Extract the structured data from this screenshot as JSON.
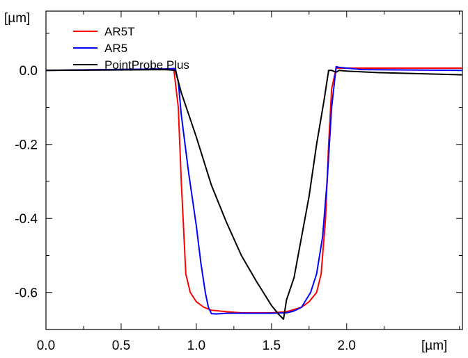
{
  "chart_data": {
    "type": "line",
    "title": "",
    "xlabel": "[µm]",
    "ylabel": "[µm]",
    "xlim": [
      0.0,
      2.77
    ],
    "ylim": [
      -0.7,
      0.16
    ],
    "x_ticks": [
      0.0,
      0.5,
      1.0,
      1.5,
      2.0
    ],
    "x_tick_labels": [
      "0.0",
      "0.5",
      "1.0",
      "1.5",
      "2.0"
    ],
    "y_ticks": [
      0.0,
      -0.2,
      -0.4,
      -0.6
    ],
    "y_tick_labels": [
      "0.0",
      "-0.2",
      "-0.4",
      "-0.6"
    ],
    "grid": false,
    "legend_position": "top-left",
    "series": [
      {
        "name": "AR5T",
        "color": "#ff0000",
        "x": [
          0.0,
          0.4,
          0.8,
          0.85,
          0.88,
          0.9,
          0.93,
          0.96,
          1.0,
          1.05,
          1.1,
          1.2,
          1.3,
          1.4,
          1.5,
          1.6,
          1.7,
          1.75,
          1.8,
          1.83,
          1.86,
          1.88,
          1.9,
          1.93,
          2.0,
          2.3,
          2.77
        ],
        "y": [
          0.0,
          0.002,
          0.004,
          0.004,
          -0.1,
          -0.3,
          -0.55,
          -0.6,
          -0.625,
          -0.64,
          -0.648,
          -0.652,
          -0.655,
          -0.655,
          -0.655,
          -0.652,
          -0.64,
          -0.625,
          -0.6,
          -0.55,
          -0.4,
          -0.2,
          -0.05,
          0.006,
          0.006,
          0.006,
          0.006
        ]
      },
      {
        "name": "AR5",
        "color": "#0000ff",
        "x": [
          0.0,
          0.4,
          0.8,
          0.86,
          0.88,
          0.9,
          0.95,
          1.0,
          1.03,
          1.06,
          1.08,
          1.1,
          1.13,
          1.17,
          1.2,
          1.3,
          1.4,
          1.5,
          1.6,
          1.65,
          1.7,
          1.73,
          1.76,
          1.8,
          1.84,
          1.87,
          1.9,
          1.93,
          1.95,
          2.1,
          2.77
        ],
        "y": [
          0.0,
          0.002,
          0.004,
          0.005,
          -0.03,
          -0.12,
          -0.28,
          -0.42,
          -0.52,
          -0.6,
          -0.64,
          -0.657,
          -0.658,
          -0.657,
          -0.656,
          -0.656,
          -0.656,
          -0.656,
          -0.655,
          -0.65,
          -0.64,
          -0.62,
          -0.6,
          -0.55,
          -0.45,
          -0.3,
          -0.1,
          0.01,
          0.008,
          0.002,
          0.0
        ]
      },
      {
        "name": "PointProbe Plus",
        "color": "#000000",
        "x": [
          0.0,
          0.4,
          0.8,
          0.86,
          0.9,
          1.0,
          1.1,
          1.2,
          1.3,
          1.4,
          1.5,
          1.55,
          1.58,
          1.6,
          1.65,
          1.7,
          1.75,
          1.8,
          1.85,
          1.88,
          1.9,
          1.93,
          1.95,
          2.0,
          2.2,
          2.77
        ],
        "y": [
          0.0,
          0.001,
          0.002,
          0.0,
          -0.06,
          -0.18,
          -0.31,
          -0.41,
          -0.5,
          -0.57,
          -0.635,
          -0.66,
          -0.672,
          -0.62,
          -0.56,
          -0.45,
          -0.34,
          -0.2,
          -0.08,
          0.0,
          0.0,
          -0.005,
          0.0,
          -0.002,
          -0.006,
          -0.012
        ]
      }
    ]
  }
}
